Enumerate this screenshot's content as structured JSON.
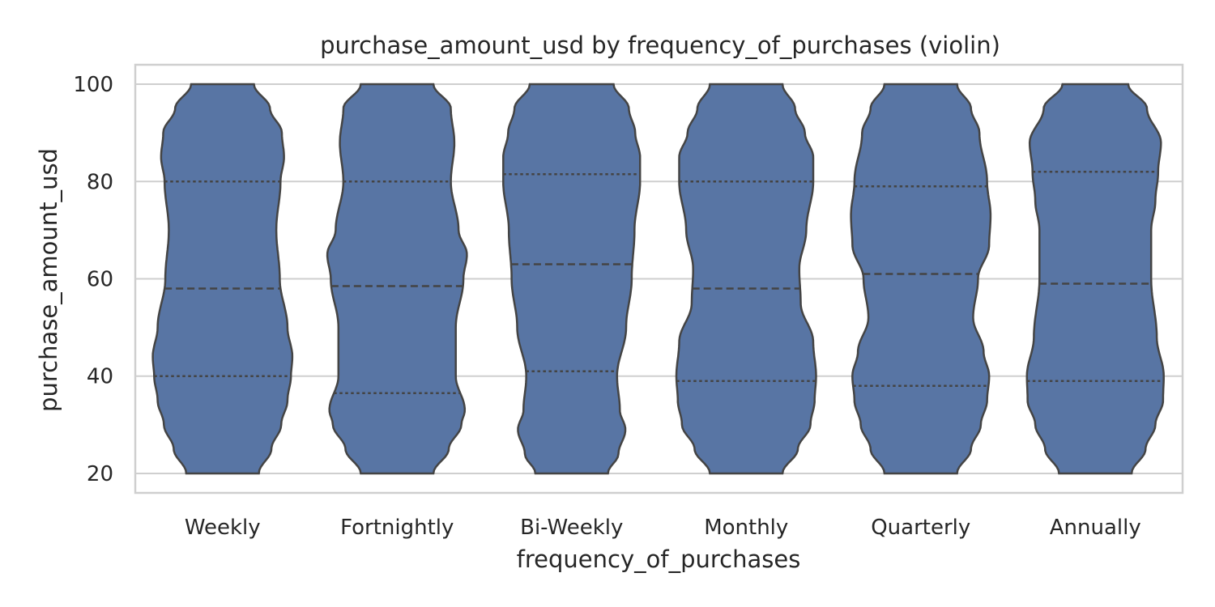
{
  "chart_data": {
    "type": "violin",
    "title": "purchase_amount_usd by frequency_of_purchases (violin)",
    "xlabel": "frequency_of_purchases",
    "ylabel": "purchase_amount_usd",
    "ylim": [
      16,
      104
    ],
    "yticks": [
      20,
      40,
      60,
      80,
      100
    ],
    "grid": true,
    "color": "#5875a4",
    "edge_color": "#444444",
    "categories": [
      "Weekly",
      "Fortnightly",
      "Bi-Weekly",
      "Monthly",
      "Quarterly",
      "Annually"
    ],
    "series": [
      {
        "category": "Weekly",
        "min": 20,
        "max": 100,
        "q1": 40,
        "median": 58,
        "q3": 80,
        "density": [
          [
            20,
            0.52
          ],
          [
            25,
            0.7
          ],
          [
            30,
            0.84
          ],
          [
            35,
            0.93
          ],
          [
            40,
            0.98
          ],
          [
            44,
            1.0
          ],
          [
            50,
            0.93
          ],
          [
            60,
            0.82
          ],
          [
            70,
            0.77
          ],
          [
            80,
            0.83
          ],
          [
            85,
            0.88
          ],
          [
            90,
            0.85
          ],
          [
            95,
            0.68
          ],
          [
            100,
            0.45
          ]
        ]
      },
      {
        "category": "Fortnightly",
        "min": 20,
        "max": 100,
        "q1": 36.5,
        "median": 58.5,
        "q3": 80,
        "density": [
          [
            20,
            0.52
          ],
          [
            25,
            0.74
          ],
          [
            30,
            0.92
          ],
          [
            33,
            0.97
          ],
          [
            40,
            0.84
          ],
          [
            50,
            0.84
          ],
          [
            60,
            0.95
          ],
          [
            65,
            1.0
          ],
          [
            70,
            0.88
          ],
          [
            80,
            0.77
          ],
          [
            88,
            0.82
          ],
          [
            95,
            0.77
          ],
          [
            100,
            0.52
          ]
        ]
      },
      {
        "category": "Bi-Weekly",
        "min": 20,
        "max": 100,
        "q1": 41,
        "median": 63,
        "q3": 81.5,
        "density": [
          [
            20,
            0.52
          ],
          [
            24,
            0.67
          ],
          [
            29,
            0.77
          ],
          [
            33,
            0.69
          ],
          [
            40,
            0.65
          ],
          [
            50,
            0.78
          ],
          [
            60,
            0.86
          ],
          [
            70,
            0.9
          ],
          [
            80,
            0.98
          ],
          [
            85,
            0.98
          ],
          [
            90,
            0.91
          ],
          [
            95,
            0.82
          ],
          [
            100,
            0.6
          ]
        ]
      },
      {
        "category": "Monthly",
        "min": 20,
        "max": 100,
        "q1": 39,
        "median": 58,
        "q3": 80,
        "density": [
          [
            20,
            0.52
          ],
          [
            25,
            0.74
          ],
          [
            30,
            0.92
          ],
          [
            35,
            0.98
          ],
          [
            40,
            1.0
          ],
          [
            47,
            0.96
          ],
          [
            55,
            0.78
          ],
          [
            62,
            0.76
          ],
          [
            70,
            0.86
          ],
          [
            80,
            0.96
          ],
          [
            85,
            0.96
          ],
          [
            90,
            0.84
          ],
          [
            95,
            0.7
          ],
          [
            100,
            0.52
          ]
        ]
      },
      {
        "category": "Quarterly",
        "min": 20,
        "max": 100,
        "q1": 38,
        "median": 61,
        "q3": 79,
        "density": [
          [
            20,
            0.52
          ],
          [
            25,
            0.72
          ],
          [
            30,
            0.86
          ],
          [
            35,
            0.95
          ],
          [
            40,
            0.98
          ],
          [
            45,
            0.9
          ],
          [
            52,
            0.75
          ],
          [
            60,
            0.82
          ],
          [
            67,
            0.98
          ],
          [
            73,
            1.0
          ],
          [
            80,
            0.95
          ],
          [
            90,
            0.84
          ],
          [
            95,
            0.72
          ],
          [
            100,
            0.52
          ]
        ]
      },
      {
        "category": "Annually",
        "min": 20,
        "max": 100,
        "q1": 39,
        "median": 59,
        "q3": 82,
        "density": [
          [
            20,
            0.52
          ],
          [
            25,
            0.72
          ],
          [
            30,
            0.86
          ],
          [
            35,
            0.97
          ],
          [
            40,
            0.98
          ],
          [
            48,
            0.88
          ],
          [
            60,
            0.8
          ],
          [
            70,
            0.8
          ],
          [
            76,
            0.86
          ],
          [
            82,
            0.9
          ],
          [
            88,
            0.94
          ],
          [
            95,
            0.74
          ],
          [
            100,
            0.47
          ]
        ]
      }
    ]
  }
}
